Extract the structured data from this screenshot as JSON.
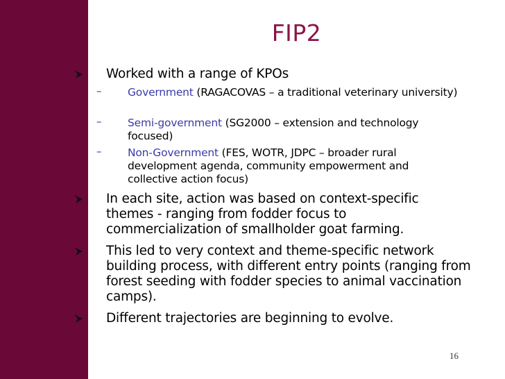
{
  "title": "FIP2",
  "bullets": [
    {
      "text": "Worked with a range of KPOs"
    },
    {
      "text": "In each site, action was based on context-specific themes - ranging from fodder focus to commercialization of smallholder goat farming."
    },
    {
      "text": "This led to very context and theme-specific network building process, with different entry points (ranging from forest seeding with fodder species to animal vaccination camps)."
    },
    {
      "text": "Different trajectories are beginning to evolve."
    }
  ],
  "sub_bullets": [
    {
      "label": "Government",
      "text": " (RAGACOVAS – a traditional veterinary university)"
    },
    {
      "label": "Semi-government",
      "text": " (SG2000 – extension and technology focused)"
    },
    {
      "label": "Non-Government",
      "text": " (FES, WOTR, JDPC – broader rural development agenda, community empowerment and collective action focus)"
    }
  ],
  "dash_glyph": "–",
  "page_number": "16",
  "colors": {
    "sidebar": "#6a0838",
    "title": "#8a1548",
    "highlight": "#3a3aa8"
  }
}
